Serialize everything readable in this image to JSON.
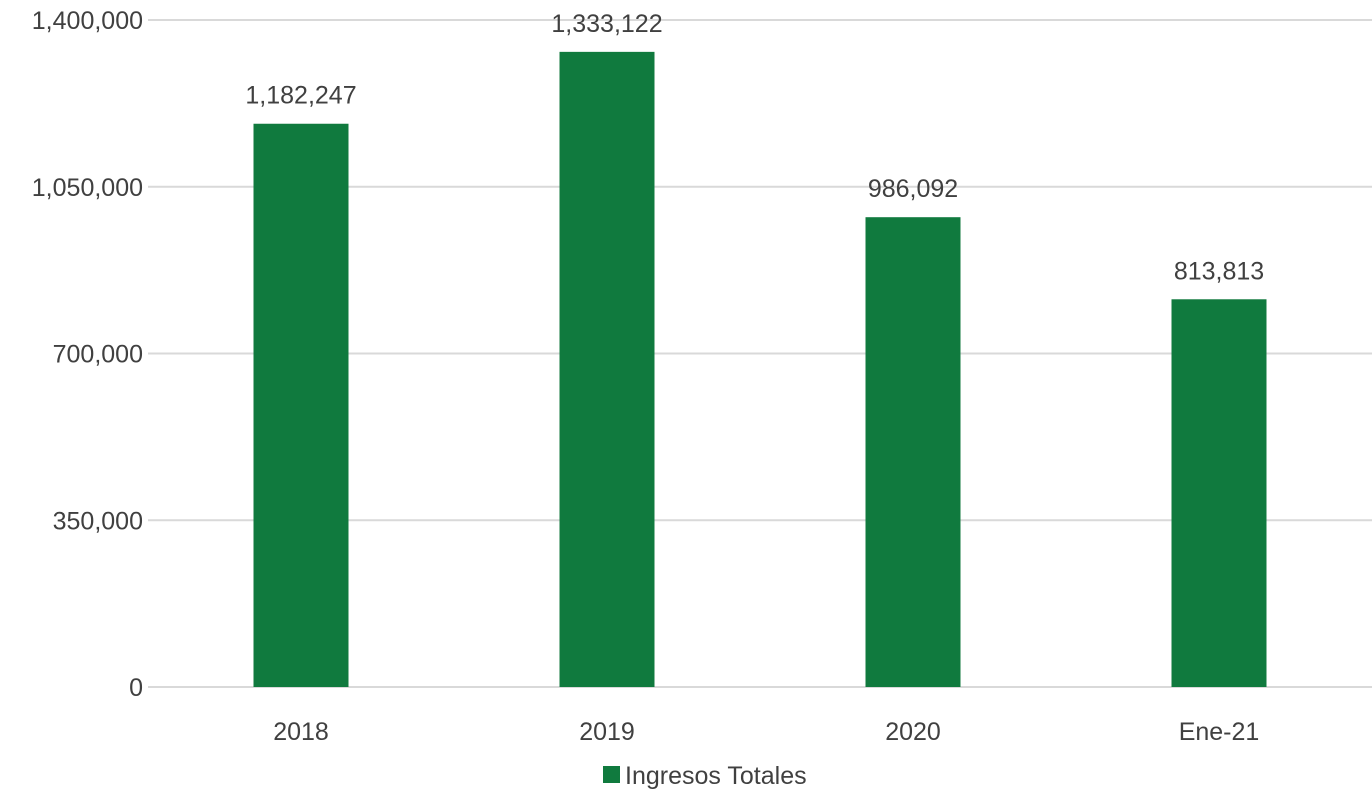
{
  "chart_data": {
    "type": "bar",
    "categories": [
      "2018",
      "2019",
      "2020",
      "Ene-21"
    ],
    "series": [
      {
        "name": "Ingresos Totales",
        "values": [
          1182247,
          1333122,
          986092,
          813813
        ],
        "data_labels": [
          "1,182,247",
          "1,333,122",
          "986,092",
          "813,813"
        ]
      }
    ],
    "ylim": [
      0,
      1400000
    ],
    "yticks": [
      0,
      350000,
      700000,
      1050000,
      1400000
    ],
    "ytick_labels": [
      "0",
      "350,000",
      "700,000",
      "1,050,000",
      "1,400,000"
    ],
    "grid": true,
    "legend_position": "bottom",
    "colors": {
      "bar": "#107a3e",
      "grid": "#d9d9d9",
      "text": "#404040"
    }
  }
}
